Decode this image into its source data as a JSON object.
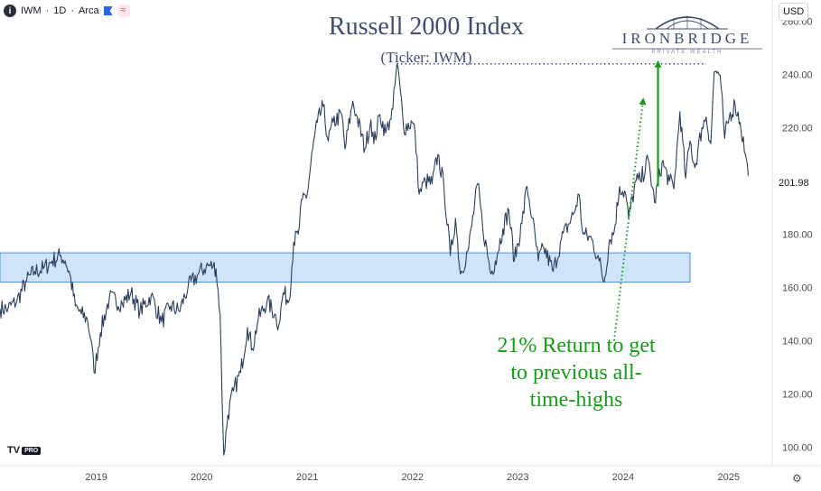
{
  "header": {
    "symbol": "IWM",
    "interval": "1D",
    "exchange": "Arca",
    "info_icon": "info-icon",
    "flag_icon": "flag-icon",
    "wave_icon": "wave-icon"
  },
  "title": "Russell 2000 Index",
  "subtitle": "(Ticker: IWM)",
  "logo": {
    "name": "IRONBRIDGE",
    "tagline": "PRIVATE WEALTH",
    "color": "#3f4d6e"
  },
  "currency": "USD",
  "last_price": "201.98",
  "annotation": {
    "lines": [
      "21% Return to get",
      "to previous all-",
      "time-highs"
    ],
    "color": "#179b1a"
  },
  "branding": {
    "mark": "TV",
    "badge": "PRO"
  },
  "settings_icon": "gear-icon",
  "chart_data": {
    "type": "line",
    "symbol": "IWM",
    "line_color": "#2b3f5c",
    "x_ticks": [
      "2019",
      "2020",
      "2021",
      "2022",
      "2023",
      "2024",
      "2025"
    ],
    "y_ticks": [
      100,
      120,
      140,
      160,
      180,
      200,
      220,
      240,
      260
    ],
    "ylim": [
      93,
      268
    ],
    "xlim": [
      "2018-02-01",
      "2025-06-01"
    ],
    "grid": false,
    "series": [
      {
        "values": [
          [
            "2018-02-01",
            152
          ],
          [
            "2018-03-01",
            152
          ],
          [
            "2018-04-01",
            155
          ],
          [
            "2018-05-01",
            162
          ],
          [
            "2018-06-01",
            166
          ],
          [
            "2018-07-01",
            167
          ],
          [
            "2018-08-01",
            170
          ],
          [
            "2018-08-31",
            172
          ],
          [
            "2018-09-15",
            170
          ],
          [
            "2018-10-01",
            165
          ],
          [
            "2018-10-20",
            153
          ],
          [
            "2018-11-10",
            150
          ],
          [
            "2018-12-01",
            148
          ],
          [
            "2018-12-14",
            140
          ],
          [
            "2018-12-24",
            128
          ],
          [
            "2019-01-15",
            143
          ],
          [
            "2019-02-15",
            156
          ],
          [
            "2019-04-01",
            154
          ],
          [
            "2019-05-01",
            158
          ],
          [
            "2019-06-01",
            151
          ],
          [
            "2019-07-10",
            157
          ],
          [
            "2019-08-15",
            147
          ],
          [
            "2019-09-15",
            153
          ],
          [
            "2019-10-15",
            151
          ],
          [
            "2019-11-15",
            160
          ],
          [
            "2019-12-20",
            165
          ],
          [
            "2020-01-17",
            168
          ],
          [
            "2020-02-10",
            168
          ],
          [
            "2020-02-20",
            167
          ],
          [
            "2020-03-05",
            150
          ],
          [
            "2020-03-12",
            118
          ],
          [
            "2020-03-18",
            97
          ],
          [
            "2020-04-01",
            112
          ],
          [
            "2020-04-20",
            121
          ],
          [
            "2020-05-15",
            128
          ],
          [
            "2020-06-08",
            145
          ],
          [
            "2020-06-25",
            137
          ],
          [
            "2020-07-15",
            148
          ],
          [
            "2020-08-15",
            155
          ],
          [
            "2020-09-10",
            150
          ],
          [
            "2020-09-25",
            146
          ],
          [
            "2020-10-10",
            158
          ],
          [
            "2020-10-30",
            155
          ],
          [
            "2020-11-15",
            177
          ],
          [
            "2020-12-01",
            180
          ],
          [
            "2020-12-15",
            193
          ],
          [
            "2021-01-01",
            195
          ],
          [
            "2021-01-20",
            212
          ],
          [
            "2021-02-05",
            222
          ],
          [
            "2021-02-25",
            228
          ],
          [
            "2021-03-15",
            215
          ],
          [
            "2021-04-01",
            222
          ],
          [
            "2021-05-01",
            225
          ],
          [
            "2021-05-12",
            212
          ],
          [
            "2021-06-08",
            230
          ],
          [
            "2021-06-20",
            225
          ],
          [
            "2021-07-20",
            212
          ],
          [
            "2021-08-10",
            223
          ],
          [
            "2021-08-20",
            214
          ],
          [
            "2021-09-10",
            225
          ],
          [
            "2021-09-30",
            218
          ],
          [
            "2021-10-15",
            223
          ],
          [
            "2021-10-25",
            227
          ],
          [
            "2021-11-08",
            244
          ],
          [
            "2021-11-20",
            234
          ],
          [
            "2021-12-01",
            220
          ],
          [
            "2021-12-31",
            222
          ],
          [
            "2022-01-10",
            218
          ],
          [
            "2022-01-24",
            195
          ],
          [
            "2022-02-15",
            200
          ],
          [
            "2022-03-10",
            199
          ],
          [
            "2022-03-30",
            210
          ],
          [
            "2022-04-20",
            198
          ],
          [
            "2022-05-12",
            172
          ],
          [
            "2022-05-30",
            186
          ],
          [
            "2022-06-16",
            165
          ],
          [
            "2022-07-15",
            175
          ],
          [
            "2022-08-15",
            199
          ],
          [
            "2022-09-01",
            183
          ],
          [
            "2022-09-30",
            165
          ],
          [
            "2022-10-15",
            170
          ],
          [
            "2022-11-10",
            182
          ],
          [
            "2022-12-01",
            189
          ],
          [
            "2022-12-20",
            170
          ],
          [
            "2023-01-15",
            184
          ],
          [
            "2023-02-02",
            198
          ],
          [
            "2023-02-20",
            186
          ],
          [
            "2023-03-13",
            170
          ],
          [
            "2023-04-01",
            175
          ],
          [
            "2023-05-04",
            166
          ],
          [
            "2023-06-01",
            178
          ],
          [
            "2023-07-15",
            188
          ],
          [
            "2023-08-01",
            195
          ],
          [
            "2023-08-15",
            180
          ],
          [
            "2023-09-15",
            178
          ],
          [
            "2023-10-10",
            170
          ],
          [
            "2023-10-27",
            162
          ],
          [
            "2023-11-15",
            178
          ],
          [
            "2023-12-01",
            181
          ],
          [
            "2023-12-20",
            198
          ],
          [
            "2024-01-10",
            195
          ],
          [
            "2024-01-20",
            186
          ],
          [
            "2024-02-15",
            200
          ],
          [
            "2024-03-01",
            200
          ],
          [
            "2024-03-28",
            208
          ],
          [
            "2024-04-19",
            192
          ],
          [
            "2024-05-15",
            207
          ],
          [
            "2024-06-10",
            200
          ],
          [
            "2024-06-25",
            197
          ],
          [
            "2024-07-16",
            226
          ],
          [
            "2024-08-05",
            201
          ],
          [
            "2024-08-20",
            215
          ],
          [
            "2024-09-06",
            205
          ],
          [
            "2024-09-30",
            220
          ],
          [
            "2024-10-15",
            224
          ],
          [
            "2024-10-31",
            214
          ],
          [
            "2024-11-12",
            241
          ],
          [
            "2024-11-25",
            241
          ],
          [
            "2024-12-06",
            235
          ],
          [
            "2024-12-18",
            216
          ],
          [
            "2025-01-03",
            224
          ],
          [
            "2025-01-23",
            229
          ],
          [
            "2025-02-10",
            222
          ],
          [
            "2025-02-28",
            210
          ],
          [
            "2025-03-10",
            201.98
          ]
        ]
      }
    ],
    "support_zone": {
      "low": 162,
      "high": 173,
      "x_from": "2018-02-01",
      "x_to": "2024-08-20",
      "fill": "#cfe3fb",
      "stroke": "#4a90d9"
    },
    "ath_line": {
      "y": 244,
      "x_from": "2021-11-08",
      "x_to": "2024-10-15",
      "color": "#3a4a8f"
    },
    "arrows": [
      {
        "from": [
          "2023-12-01",
          140
        ],
        "to": [
          "2024-03-10",
          230
        ],
        "style": "dotted",
        "color": "#179b1a"
      },
      {
        "from": [
          "2024-05-01",
          198
        ],
        "to": [
          "2024-05-01",
          244
        ],
        "style": "solid",
        "color": "#179b1a"
      }
    ]
  }
}
